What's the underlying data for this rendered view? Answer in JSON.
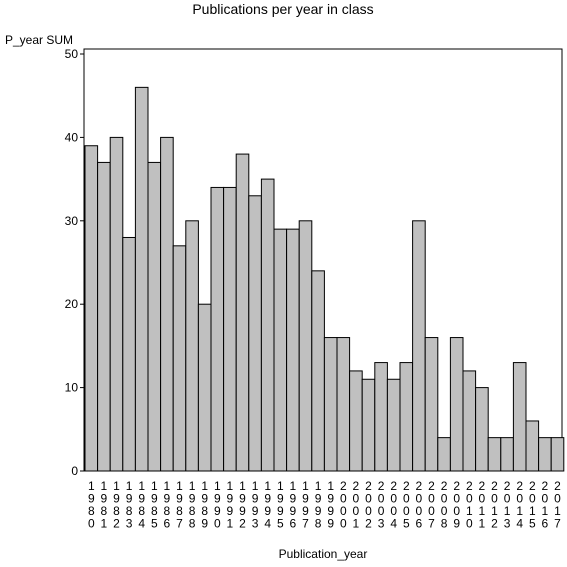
{
  "chart_data": {
    "type": "bar",
    "title": "Publications per year in class",
    "ylabel": "P_year SUM",
    "xlabel": "Publication_year",
    "ylim": [
      0,
      50
    ],
    "yticks": [
      0,
      10,
      20,
      30,
      40,
      50
    ],
    "categories": [
      "1980",
      "1981",
      "1982",
      "1983",
      "1984",
      "1985",
      "1986",
      "1987",
      "1988",
      "1989",
      "1990",
      "1991",
      "1992",
      "1993",
      "1994",
      "1995",
      "1996",
      "1997",
      "1998",
      "1999",
      "2000",
      "2001",
      "2002",
      "2003",
      "2004",
      "2005",
      "2006",
      "2007",
      "2008",
      "2009",
      "2010",
      "2011",
      "2012",
      "2013",
      "2014",
      "2015",
      "2016",
      "2017"
    ],
    "values": [
      39,
      37,
      40,
      28,
      46,
      37,
      40,
      27,
      30,
      20,
      34,
      34,
      38,
      33,
      35,
      29,
      29,
      30,
      24,
      16,
      16,
      12,
      11,
      13,
      11,
      13,
      30,
      16,
      4,
      16,
      12,
      10,
      4,
      4,
      13,
      6,
      4,
      4
    ],
    "bar_color": "#c0c0c0",
    "grid": false
  }
}
